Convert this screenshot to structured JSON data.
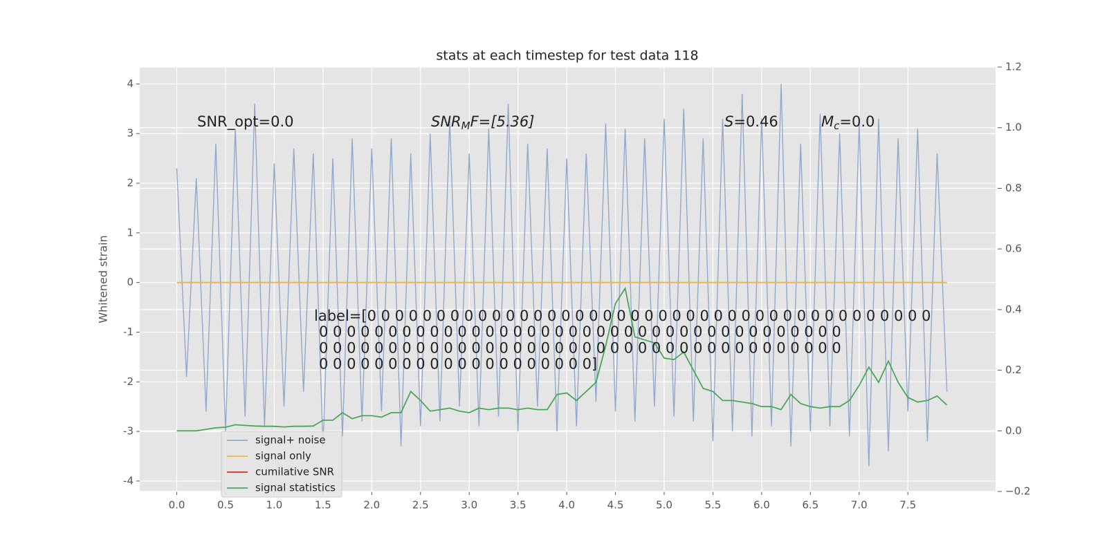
{
  "chart_data": {
    "type": "line",
    "title": "stats at each timestep for test data 118",
    "ylabel": "Whitened strain",
    "x": [
      0.0,
      0.1,
      0.2,
      0.3,
      0.4,
      0.5,
      0.6,
      0.7,
      0.8,
      0.9,
      1.0,
      1.1,
      1.2,
      1.3,
      1.4,
      1.5,
      1.6,
      1.7,
      1.8,
      1.9,
      2.0,
      2.1,
      2.2,
      2.3,
      2.4,
      2.5,
      2.6,
      2.7,
      2.8,
      2.9,
      3.0,
      3.1,
      3.2,
      3.3,
      3.4,
      3.5,
      3.6,
      3.7,
      3.8,
      3.9,
      4.0,
      4.1,
      4.2,
      4.3,
      4.4,
      4.5,
      4.6,
      4.7,
      4.8,
      4.9,
      5.0,
      5.1,
      5.2,
      5.3,
      5.4,
      5.5,
      5.6,
      5.7,
      5.8,
      5.9,
      6.0,
      6.1,
      6.2,
      6.3,
      6.4,
      6.5,
      6.6,
      6.7,
      6.8,
      6.9,
      7.0,
      7.1,
      7.2,
      7.3,
      7.4,
      7.5,
      7.6,
      7.7,
      7.8,
      7.9
    ],
    "series": [
      {
        "name": "signal+ noise",
        "color": "#92a8cd",
        "values": [
          2.3,
          -1.9,
          2.1,
          -2.6,
          2.8,
          -3.0,
          3.1,
          -2.7,
          3.6,
          -2.9,
          2.4,
          -2.5,
          2.7,
          -2.2,
          2.6,
          -3.3,
          2.5,
          -3.1,
          2.9,
          -2.8,
          2.7,
          -2.6,
          2.9,
          -3.3,
          2.6,
          -2.9,
          3.0,
          -2.8,
          3.3,
          -2.5,
          2.6,
          -2.9,
          3.1,
          -2.7,
          3.6,
          -3.0,
          2.8,
          -2.5,
          2.7,
          -3.0,
          2.5,
          -2.9,
          2.6,
          -2.4,
          3.2,
          -2.6,
          3.1,
          -2.8,
          2.9,
          -2.5,
          3.3,
          -2.7,
          3.5,
          -2.8,
          2.9,
          -3.2,
          3.3,
          -3.0,
          3.8,
          -3.1,
          3.3,
          -2.9,
          4.0,
          -3.3,
          2.8,
          -3.0,
          3.4,
          -2.9,
          3.0,
          -3.1,
          3.2,
          -3.7,
          3.3,
          -3.4,
          2.9,
          -2.6,
          3.1,
          -3.2,
          2.6,
          -2.2
        ]
      },
      {
        "name": "signal only",
        "color": "#e8b54d",
        "values": [
          0,
          0,
          0,
          0,
          0,
          0,
          0,
          0,
          0,
          0,
          0,
          0,
          0,
          0,
          0,
          0,
          0,
          0,
          0,
          0,
          0,
          0,
          0,
          0,
          0,
          0,
          0,
          0,
          0,
          0,
          0,
          0,
          0,
          0,
          0,
          0,
          0,
          0,
          0,
          0,
          0,
          0,
          0,
          0,
          0,
          0,
          0,
          0,
          0,
          0,
          0,
          0,
          0,
          0,
          0,
          0,
          0,
          0,
          0,
          0,
          0,
          0,
          0,
          0,
          0,
          0,
          0,
          0,
          0,
          0,
          0,
          0,
          0,
          0,
          0,
          0,
          0,
          0,
          0,
          0
        ]
      },
      {
        "name": "cumilative SNR",
        "color": "#d62a1e"
      },
      {
        "name": "signal statistics",
        "color": "#4aa657",
        "axis": "y2",
        "values": [
          0.0,
          0.0,
          0.0,
          0.005,
          0.01,
          0.012,
          0.02,
          0.018,
          0.016,
          0.015,
          0.015,
          0.013,
          0.015,
          0.015,
          0.016,
          0.035,
          0.035,
          0.06,
          0.04,
          0.05,
          0.05,
          0.045,
          0.06,
          0.06,
          0.13,
          0.1,
          0.065,
          0.07,
          0.075,
          0.065,
          0.06,
          0.075,
          0.07,
          0.075,
          0.075,
          0.07,
          0.075,
          0.07,
          0.07,
          0.12,
          0.125,
          0.1,
          0.13,
          0.16,
          0.28,
          0.42,
          0.47,
          0.31,
          0.3,
          0.29,
          0.24,
          0.235,
          0.26,
          0.2,
          0.14,
          0.13,
          0.1,
          0.1,
          0.095,
          0.09,
          0.08,
          0.08,
          0.07,
          0.12,
          0.09,
          0.08,
          0.075,
          0.08,
          0.08,
          0.1,
          0.15,
          0.21,
          0.16,
          0.23,
          0.16,
          0.11,
          0.095,
          0.1,
          0.115,
          0.085
        ]
      }
    ],
    "xlim": [
      -0.38,
      8.4
    ],
    "ylim": [
      -4.21,
      4.34
    ],
    "y2lim": [
      -0.2,
      1.2
    ],
    "xticks": [
      {
        "value": 0,
        "label": "0.0"
      },
      {
        "value": 0.5,
        "label": "0.5"
      },
      {
        "value": 1,
        "label": "1.0"
      },
      {
        "value": 1.5,
        "label": "1.5"
      },
      {
        "value": 2,
        "label": "2.0"
      },
      {
        "value": 2.5,
        "label": "2.5"
      },
      {
        "value": 3,
        "label": "3.0"
      },
      {
        "value": 3.5,
        "label": "3.5"
      },
      {
        "value": 4,
        "label": "4.0"
      },
      {
        "value": 4.5,
        "label": "4.5"
      },
      {
        "value": 5,
        "label": "5.0"
      },
      {
        "value": 5.5,
        "label": "5.5"
      },
      {
        "value": 6,
        "label": "6.0"
      },
      {
        "value": 6.5,
        "label": "6.5"
      },
      {
        "value": 7,
        "label": "7.0"
      },
      {
        "value": 7.5,
        "label": "7.5"
      }
    ],
    "yticks": [
      -4,
      -3,
      -2,
      -1,
      0,
      1,
      2,
      3,
      4
    ],
    "y2ticks": [
      {
        "value": -0.2,
        "label": "−0.2"
      },
      {
        "value": 0,
        "label": "0.0"
      },
      {
        "value": 0.2,
        "label": "0.2"
      },
      {
        "value": 0.4,
        "label": "0.4"
      },
      {
        "value": 0.6,
        "label": "0.6"
      },
      {
        "value": 0.8,
        "label": "0.8"
      },
      {
        "value": 1,
        "label": "1.0"
      },
      {
        "value": 1.2,
        "label": "1.2"
      }
    ],
    "grid": true,
    "legend": "lower left",
    "annotations": [
      {
        "main": "SNR_opt=0.0"
      },
      {
        "main": "SNR",
        "sub": "M",
        "tail": "F=[5.36]"
      },
      {
        "main": "S",
        "tail": "=0.46"
      },
      {
        "main": "M",
        "sub": "c",
        "tail": "=0.0"
      }
    ],
    "label_lines": [
      "label=[0 0 0 0 0 0 0 0 0 0 0 0 0 0 0 0 0 0 0 0 0 0 0 0 0 0 0 0 0 0 0 0 0 0 0 0 0 0 0 0 0",
      "0 0 0 0 0 0 0 0 0 0 0 0 0 0 0 0 0 0 0 0 0 0 0 0 0 0 0 0 0 0 0 0 0 0 0 0 0 0",
      "0 0 0 0 0 0 0 0 0 0 0 0 0 0 0 0 0 0 0 0 0 0 0 0 0 0 0 0 0 0 0 0 0 0 0 0 0 0",
      "0 0 0 0 0 0 0 0 0 0 0 0 0 0 0 0 0 0 0 0]"
    ]
  }
}
